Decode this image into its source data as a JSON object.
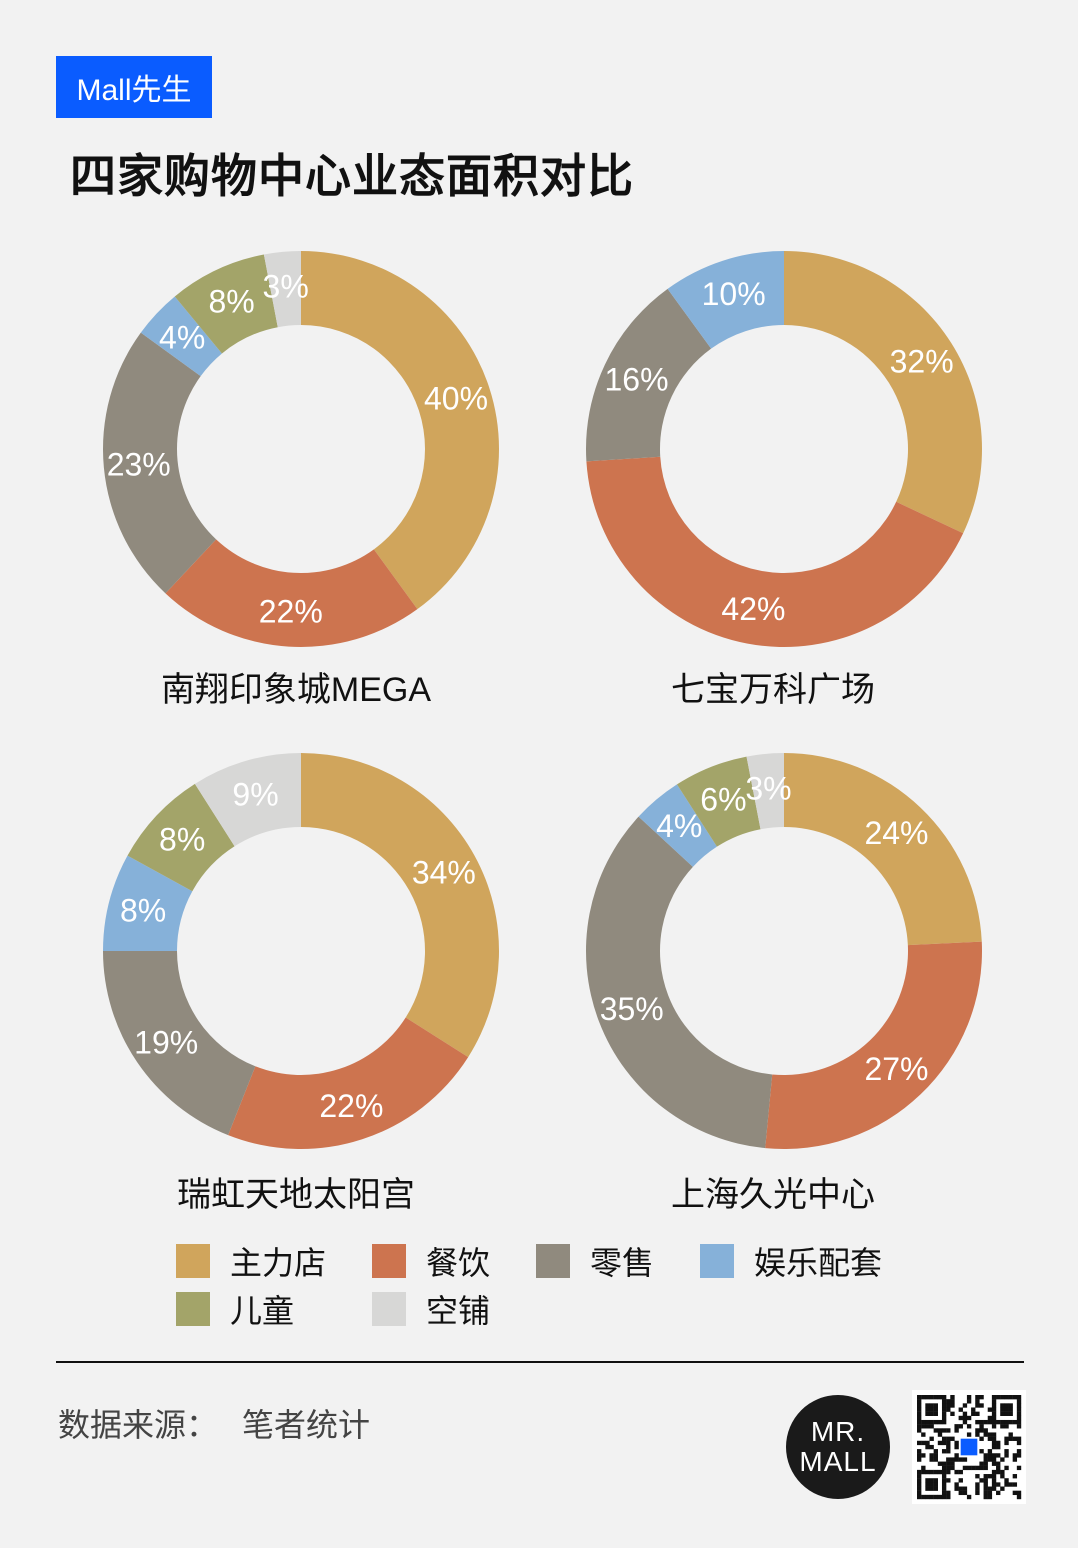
{
  "brand": "Mall先生",
  "title": "四家购物中心业态面积对比",
  "colors": {
    "主力店": "#d0a55c",
    "餐饮": "#cd744f",
    "零售": "#908a7e",
    "娱乐配套": "#86b1d9",
    "儿童": "#a3a469",
    "空铺": "#d7d7d6"
  },
  "legend": [
    "主力店",
    "餐饮",
    "零售",
    "娱乐配套",
    "儿童",
    "空铺"
  ],
  "chart_data": [
    {
      "type": "donut",
      "title": "南翔印象城MEGA",
      "categories": [
        "主力店",
        "餐饮",
        "零售",
        "娱乐配套",
        "儿童",
        "空铺"
      ],
      "values": [
        40,
        22,
        23,
        4,
        8,
        3
      ],
      "labels": [
        "40%",
        "22%",
        "23%",
        "4%",
        "8%",
        "3%"
      ]
    },
    {
      "type": "donut",
      "title": "七宝万科广场",
      "categories": [
        "主力店",
        "餐饮",
        "零售",
        "娱乐配套"
      ],
      "values": [
        32,
        42,
        16,
        10
      ],
      "labels": [
        "32%",
        "42%",
        "16%",
        "10%"
      ]
    },
    {
      "type": "donut",
      "title": "瑞虹天地太阳宫",
      "categories": [
        "主力店",
        "餐饮",
        "零售",
        "娱乐配套",
        "儿童",
        "空铺"
      ],
      "values": [
        34,
        22,
        19,
        8,
        8,
        9
      ],
      "labels": [
        "34%",
        "22%",
        "19%",
        "8%",
        "8%",
        "9%"
      ]
    },
    {
      "type": "donut",
      "title": "上海久光中心",
      "categories": [
        "主力店",
        "餐饮",
        "零售",
        "娱乐配套",
        "儿童",
        "空铺"
      ],
      "values": [
        24,
        27,
        35,
        4,
        6,
        3
      ],
      "labels": [
        "24%",
        "27%",
        "35%",
        "4%",
        "6%",
        "3%"
      ]
    }
  ],
  "source": {
    "label": "数据来源：",
    "value": "笔者统计"
  },
  "logo": {
    "line1": "MR.",
    "line2": "MALL"
  }
}
